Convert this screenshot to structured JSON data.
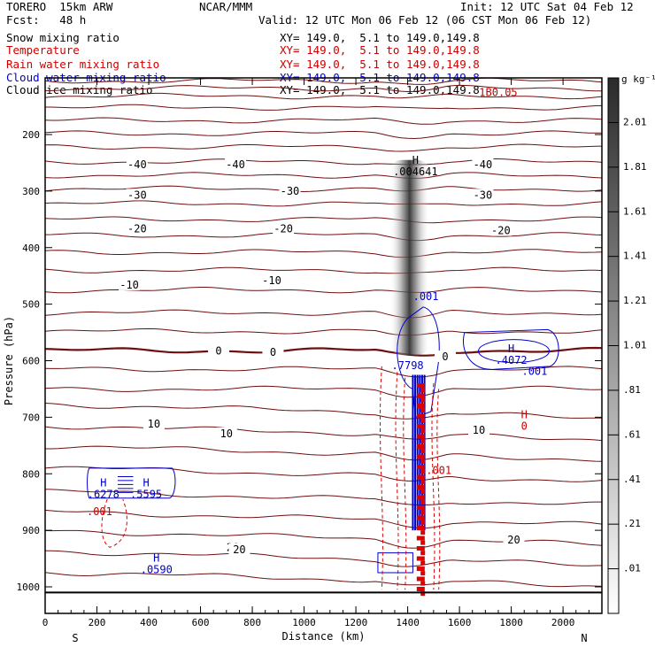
{
  "header": {
    "model": "TORERO  15km ARW",
    "org": "NCAR/MMM",
    "init": "Init: 12 UTC Sat 04 Feb 12",
    "fcst": "Fcst:   48 h",
    "valid": "Valid: 12 UTC Mon 06 Feb 12 (06 CST Mon 06 Feb 12)"
  },
  "legend": [
    {
      "name": "Snow mixing ratio",
      "xy": "XY= 149.0,  5.1 to 149.0,149.8",
      "color": "#000000"
    },
    {
      "name": "Temperature",
      "xy": "XY= 149.0,  5.1 to 149.0,149.8",
      "color": "#cc0000"
    },
    {
      "name": "Rain water mixing ratio",
      "xy": "XY= 149.0,  5.1 to 149.0,149.8",
      "color": "#cc0000"
    },
    {
      "name": "Cloud water mixing ratio",
      "xy": "XY= 149.0,  5.1 to 149.0,149.8",
      "color": "#0000cc"
    },
    {
      "name": "Cloud ice mixing ratio",
      "xy": "XY= 149.0,  5.1 to 149.0,149.8",
      "color": "#000000"
    }
  ],
  "colorbar": {
    "unit": "g kg⁻¹",
    "labels": [
      "2.01",
      "1.81",
      "1.61",
      "1.41",
      "1.21",
      "1.01",
      ".81",
      ".61",
      ".41",
      ".21",
      ".01"
    ]
  },
  "chart_data": {
    "type": "contour",
    "xlabel": "Distance (km)",
    "ylabel": "Pressure (hPa)",
    "xlim": [
      0,
      2150
    ],
    "ylim": [
      1050,
      100
    ],
    "xticks": [
      0,
      200,
      400,
      600,
      800,
      1000,
      1200,
      1400,
      1600,
      1800,
      2000
    ],
    "yticks": [
      200,
      300,
      400,
      500,
      600,
      700,
      800,
      900,
      1000
    ],
    "x_end_labels": {
      "left": "S",
      "right": "N"
    },
    "isotherm_labels": [
      {
        "t": "-40",
        "x": 355,
        "p": 253
      },
      {
        "t": "-40",
        "x": 735,
        "p": 253
      },
      {
        "t": "-40",
        "x": 1690,
        "p": 253
      },
      {
        "t": "-30",
        "x": 355,
        "p": 307
      },
      {
        "t": "-30",
        "x": 945,
        "p": 300
      },
      {
        "t": "-30",
        "x": 1690,
        "p": 307
      },
      {
        "t": "-20",
        "x": 355,
        "p": 367
      },
      {
        "t": "-20",
        "x": 920,
        "p": 367
      },
      {
        "t": "-20",
        "x": 1760,
        "p": 370
      },
      {
        "t": "-10",
        "x": 325,
        "p": 466
      },
      {
        "t": "-10",
        "x": 875,
        "p": 458
      },
      {
        "t": "0",
        "x": 670,
        "p": 583
      },
      {
        "t": "0",
        "x": 880,
        "p": 585
      },
      {
        "t": "0",
        "x": 1545,
        "p": 593
      },
      {
        "t": "10",
        "x": 420,
        "p": 712
      },
      {
        "t": "10",
        "x": 700,
        "p": 729
      },
      {
        "t": "10",
        "x": 1675,
        "p": 723
      },
      {
        "t": "20",
        "x": 725,
        "p": 930
      },
      {
        "t": "20",
        "x": 750,
        "p": 934
      },
      {
        "t": "20",
        "x": 1810,
        "p": 917
      }
    ],
    "highs": [
      {
        "h": "H",
        "v": ".004641",
        "x": 1430,
        "p": 252,
        "color": "#000000"
      },
      {
        "h": "H",
        "v": ".4072",
        "x": 1800,
        "p": 585,
        "color": "#0000cc"
      },
      {
        "h": "H",
        "v": ".0590",
        "x": 430,
        "p": 955,
        "color": "#0000cc"
      },
      {
        "h": "H",
        "v": ".6278",
        "x": 225,
        "p": 822,
        "color": "#0000cc"
      },
      {
        "h": "H",
        "v": ".5595",
        "x": 390,
        "p": 822,
        "color": "#0000cc"
      },
      {
        "h": "H",
        "v": "0",
        "x": 1850,
        "p": 702,
        "color": "#cc0000"
      }
    ],
    "contour_value_labels": [
      {
        "v": ".001",
        "x": 1470,
        "p": 493,
        "color": "#0000cc"
      },
      {
        "v": ".001",
        "x": 1890,
        "p": 625,
        "color": "#0000cc"
      },
      {
        "v": ".7798",
        "x": 1400,
        "p": 615,
        "color": "#0000cc"
      },
      {
        "v": ".001",
        "x": 1520,
        "p": 800,
        "color": "#cc0000"
      },
      {
        "v": ".001",
        "x": 210,
        "p": 873,
        "color": "#cc0000"
      },
      {
        "v": "1B0.05",
        "x": 1750,
        "p": 132,
        "color": "#cc0000"
      }
    ]
  }
}
